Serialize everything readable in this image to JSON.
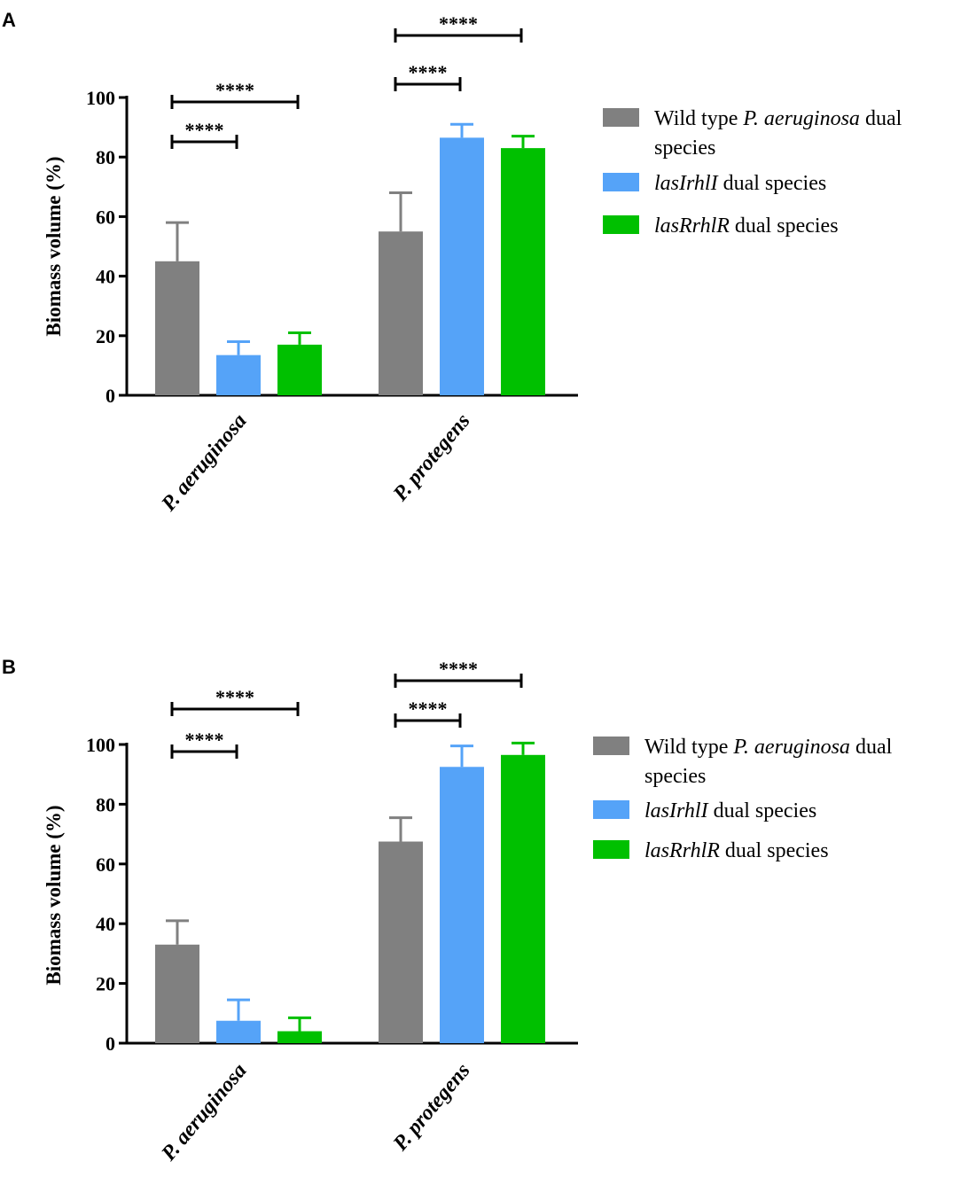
{
  "chart_data": [
    {
      "panel": "A",
      "type": "bar",
      "ylabel": "Biomass volume  (%)",
      "ylim": [
        0,
        100
      ],
      "yticks": [
        "0",
        "20",
        "40",
        "60",
        "80",
        "100"
      ],
      "categories": [
        "P. aeruginosa",
        "P. protegens"
      ],
      "series": [
        {
          "name": "Wild type P. aeruginosa dual species",
          "color": "#808080",
          "values": [
            45,
            55
          ],
          "errors": [
            13,
            13
          ]
        },
        {
          "name": "lasIrhlI dual species",
          "color": "#55A3F8",
          "values": [
            13.5,
            86.5
          ],
          "errors": [
            4.5,
            4.5
          ]
        },
        {
          "name": "lasRrhlR dual species",
          "color": "#00C000",
          "values": [
            17,
            83
          ],
          "errors": [
            4,
            4
          ]
        }
      ],
      "annotations": [
        {
          "category": 0,
          "from": 0,
          "to": 1,
          "label": "****"
        },
        {
          "category": 0,
          "from": 0,
          "to": 2,
          "label": "****"
        },
        {
          "category": 1,
          "from": 0,
          "to": 1,
          "label": "****"
        },
        {
          "category": 1,
          "from": 0,
          "to": 2,
          "label": "****"
        }
      ],
      "legend": [
        {
          "lines": [
            [
              {
                "t": "Wild type ",
                "i": false
              },
              {
                "t": "P. aeruginosa",
                "i": true
              },
              {
                "t": "  dual",
                "i": false
              }
            ],
            [
              {
                "t": "species",
                "i": false
              }
            ]
          ]
        },
        {
          "lines": [
            [
              {
                "t": "lasIrhlI",
                "i": true
              },
              {
                "t": " dual species",
                "i": false
              }
            ]
          ]
        },
        {
          "lines": [
            [
              {
                "t": "lasRrhlR",
                "i": true
              },
              {
                "t": " dual species",
                "i": false
              }
            ]
          ]
        }
      ]
    },
    {
      "panel": "B",
      "type": "bar",
      "ylabel": "Biomass volume  (%)",
      "ylim": [
        0,
        100
      ],
      "yticks": [
        "0",
        "20",
        "40",
        "60",
        "80",
        "100"
      ],
      "categories": [
        "P. aeruginosa",
        "P. protegens"
      ],
      "series": [
        {
          "name": "Wild type P. aeruginosa dual species",
          "color": "#808080",
          "values": [
            33,
            67.5
          ],
          "errors": [
            8,
            8
          ]
        },
        {
          "name": "lasIrhlI dual species",
          "color": "#55A3F8",
          "values": [
            7.5,
            92.5
          ],
          "errors": [
            7,
            7
          ]
        },
        {
          "name": "lasRrhlR dual species",
          "color": "#00C000",
          "values": [
            4,
            96.5
          ],
          "errors": [
            4.5,
            4
          ]
        }
      ],
      "annotations": [
        {
          "category": 0,
          "from": 0,
          "to": 1,
          "label": "****"
        },
        {
          "category": 0,
          "from": 0,
          "to": 2,
          "label": "****"
        },
        {
          "category": 1,
          "from": 0,
          "to": 1,
          "label": "****"
        },
        {
          "category": 1,
          "from": 0,
          "to": 2,
          "label": "****"
        }
      ],
      "legend": [
        {
          "lines": [
            [
              {
                "t": "Wild type ",
                "i": false
              },
              {
                "t": "P. aeruginosa",
                "i": true
              },
              {
                "t": "  dual",
                "i": false
              }
            ],
            [
              {
                "t": "species",
                "i": false
              }
            ]
          ]
        },
        {
          "lines": [
            [
              {
                "t": "lasIrhlI",
                "i": true
              },
              {
                "t": " dual species",
                "i": false
              }
            ]
          ]
        },
        {
          "lines": [
            [
              {
                "t": "lasRrhlR",
                "i": true
              },
              {
                "t": " dual species",
                "i": false
              }
            ]
          ]
        }
      ]
    }
  ]
}
